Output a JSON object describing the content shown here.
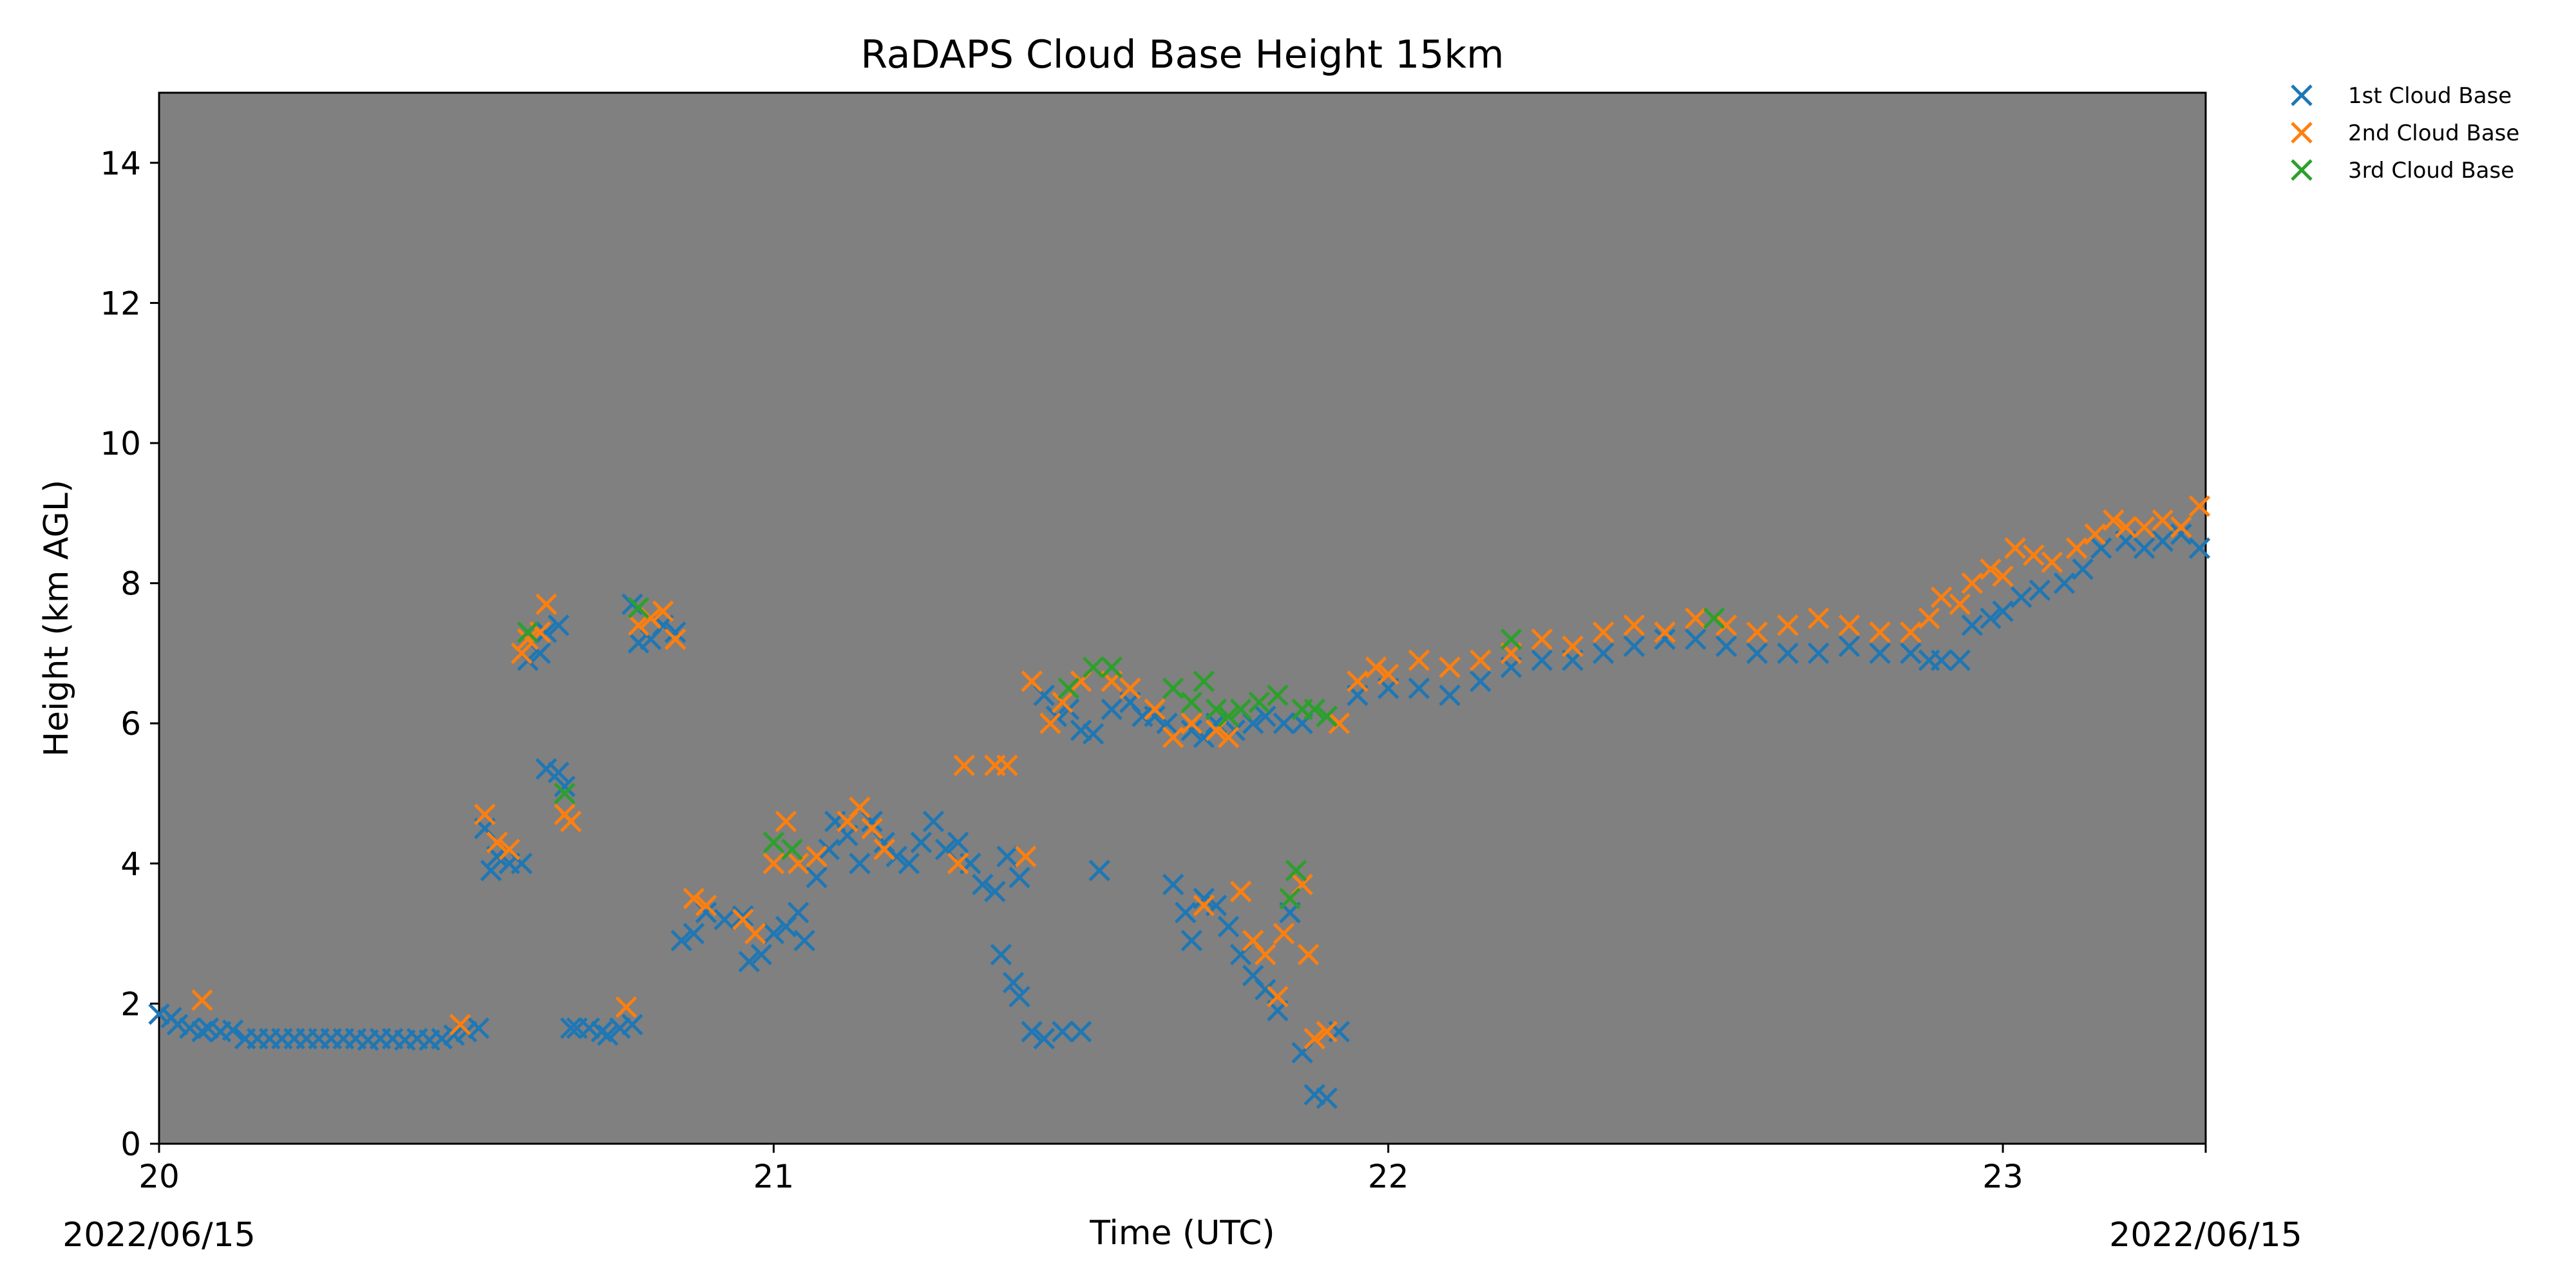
{
  "chart_data": {
    "type": "scatter",
    "title": "RaDAPS Cloud Base Height 15km",
    "xlabel": "Time (UTC)",
    "ylabel": "Height (km AGL)",
    "xlim": [
      20.0,
      23.33
    ],
    "ylim": [
      0,
      15
    ],
    "x_ticks": [
      {
        "value": 20,
        "label": "20"
      },
      {
        "value": 21,
        "label": "21"
      },
      {
        "value": 22,
        "label": "22"
      },
      {
        "value": 23,
        "label": "23"
      }
    ],
    "y_ticks": [
      {
        "value": 0,
        "label": "0"
      },
      {
        "value": 2,
        "label": "2"
      },
      {
        "value": 4,
        "label": "4"
      },
      {
        "value": 6,
        "label": "6"
      },
      {
        "value": 8,
        "label": "8"
      },
      {
        "value": 10,
        "label": "10"
      },
      {
        "value": 12,
        "label": "12"
      },
      {
        "value": 14,
        "label": "14"
      }
    ],
    "date_labels": {
      "start": "2022/06/15",
      "end": "2022/06/15"
    },
    "plot_background": "#808080",
    "marker": "x",
    "grid": false,
    "legend_position": "outside-top-right",
    "series": [
      {
        "name": "1st Cloud Base",
        "color": "#1f77b4",
        "points": [
          [
            20.0,
            1.85
          ],
          [
            20.02,
            1.8
          ],
          [
            20.03,
            1.7
          ],
          [
            20.05,
            1.65
          ],
          [
            20.07,
            1.6
          ],
          [
            20.08,
            1.65
          ],
          [
            20.1,
            1.6
          ],
          [
            20.12,
            1.62
          ],
          [
            20.14,
            1.5
          ],
          [
            20.16,
            1.5
          ],
          [
            20.18,
            1.5
          ],
          [
            20.2,
            1.5
          ],
          [
            20.22,
            1.5
          ],
          [
            20.24,
            1.5
          ],
          [
            20.26,
            1.5
          ],
          [
            20.28,
            1.5
          ],
          [
            20.3,
            1.5
          ],
          [
            20.32,
            1.5
          ],
          [
            20.34,
            1.48
          ],
          [
            20.36,
            1.5
          ],
          [
            20.38,
            1.5
          ],
          [
            20.4,
            1.48
          ],
          [
            20.42,
            1.5
          ],
          [
            20.44,
            1.48
          ],
          [
            20.46,
            1.5
          ],
          [
            20.48,
            1.55
          ],
          [
            20.5,
            1.6
          ],
          [
            20.52,
            1.65
          ],
          [
            20.53,
            4.5
          ],
          [
            20.54,
            3.9
          ],
          [
            20.55,
            4.1
          ],
          [
            20.57,
            4.0
          ],
          [
            20.59,
            4.0
          ],
          [
            20.6,
            6.9
          ],
          [
            20.62,
            7.0
          ],
          [
            20.63,
            7.3
          ],
          [
            20.65,
            7.4
          ],
          [
            20.63,
            5.35
          ],
          [
            20.65,
            5.3
          ],
          [
            20.66,
            5.1
          ],
          [
            20.67,
            1.65
          ],
          [
            20.68,
            1.65
          ],
          [
            20.7,
            1.65
          ],
          [
            20.72,
            1.6
          ],
          [
            20.73,
            1.55
          ],
          [
            20.75,
            1.65
          ],
          [
            20.77,
            1.7
          ],
          [
            20.77,
            7.7
          ],
          [
            20.78,
            7.15
          ],
          [
            20.8,
            7.2
          ],
          [
            20.82,
            7.4
          ],
          [
            20.84,
            7.3
          ],
          [
            20.85,
            2.9
          ],
          [
            20.87,
            3.0
          ],
          [
            20.89,
            3.3
          ],
          [
            20.92,
            3.2
          ],
          [
            20.95,
            3.25
          ],
          [
            20.96,
            2.6
          ],
          [
            20.98,
            2.7
          ],
          [
            21.0,
            3.0
          ],
          [
            21.02,
            3.1
          ],
          [
            21.04,
            3.3
          ],
          [
            21.05,
            2.9
          ],
          [
            21.07,
            3.8
          ],
          [
            21.09,
            4.2
          ],
          [
            21.1,
            4.6
          ],
          [
            21.12,
            4.4
          ],
          [
            21.14,
            4.0
          ],
          [
            21.16,
            4.6
          ],
          [
            21.18,
            4.3
          ],
          [
            21.2,
            4.1
          ],
          [
            21.22,
            4.0
          ],
          [
            21.24,
            4.3
          ],
          [
            21.26,
            4.6
          ],
          [
            21.28,
            4.2
          ],
          [
            21.3,
            4.3
          ],
          [
            21.32,
            4.0
          ],
          [
            21.34,
            3.7
          ],
          [
            21.36,
            3.6
          ],
          [
            21.38,
            4.1
          ],
          [
            21.4,
            3.8
          ],
          [
            21.37,
            2.7
          ],
          [
            21.39,
            2.3
          ],
          [
            21.4,
            2.1
          ],
          [
            21.42,
            1.6
          ],
          [
            21.44,
            1.5
          ],
          [
            21.47,
            1.6
          ],
          [
            21.5,
            1.6
          ],
          [
            21.53,
            3.9
          ],
          [
            21.44,
            6.4
          ],
          [
            21.46,
            6.1
          ],
          [
            21.48,
            6.2
          ],
          [
            21.5,
            5.9
          ],
          [
            21.52,
            5.85
          ],
          [
            21.55,
            6.2
          ],
          [
            21.58,
            6.3
          ],
          [
            21.6,
            6.1
          ],
          [
            21.62,
            6.1
          ],
          [
            21.64,
            6.0
          ],
          [
            21.65,
            3.7
          ],
          [
            21.67,
            3.3
          ],
          [
            21.68,
            2.9
          ],
          [
            21.7,
            3.5
          ],
          [
            21.72,
            3.4
          ],
          [
            21.74,
            3.1
          ],
          [
            21.76,
            2.7
          ],
          [
            21.78,
            2.4
          ],
          [
            21.8,
            2.2
          ],
          [
            21.82,
            1.9
          ],
          [
            21.84,
            3.3
          ],
          [
            21.86,
            1.3
          ],
          [
            21.88,
            0.7
          ],
          [
            21.9,
            0.65
          ],
          [
            21.92,
            1.6
          ],
          [
            21.68,
            5.9
          ],
          [
            21.7,
            5.8
          ],
          [
            21.72,
            6.0
          ],
          [
            21.75,
            5.9
          ],
          [
            21.78,
            6.0
          ],
          [
            21.8,
            6.1
          ],
          [
            21.83,
            6.0
          ],
          [
            21.86,
            6.0
          ],
          [
            21.9,
            6.1
          ],
          [
            21.95,
            6.4
          ],
          [
            22.0,
            6.5
          ],
          [
            22.05,
            6.5
          ],
          [
            22.1,
            6.4
          ],
          [
            22.15,
            6.6
          ],
          [
            22.2,
            6.8
          ],
          [
            22.25,
            6.9
          ],
          [
            22.3,
            6.9
          ],
          [
            22.35,
            7.0
          ],
          [
            22.4,
            7.1
          ],
          [
            22.45,
            7.2
          ],
          [
            22.5,
            7.2
          ],
          [
            22.55,
            7.1
          ],
          [
            22.6,
            7.0
          ],
          [
            22.65,
            7.0
          ],
          [
            22.7,
            7.0
          ],
          [
            22.75,
            7.1
          ],
          [
            22.8,
            7.0
          ],
          [
            22.85,
            7.0
          ],
          [
            22.88,
            6.9
          ],
          [
            22.9,
            6.9
          ],
          [
            22.93,
            6.9
          ],
          [
            22.95,
            7.4
          ],
          [
            22.98,
            7.5
          ],
          [
            23.0,
            7.6
          ],
          [
            23.03,
            7.8
          ],
          [
            23.06,
            7.9
          ],
          [
            23.1,
            8.0
          ],
          [
            23.13,
            8.2
          ],
          [
            23.16,
            8.5
          ],
          [
            23.2,
            8.6
          ],
          [
            23.23,
            8.5
          ],
          [
            23.26,
            8.6
          ],
          [
            23.29,
            8.7
          ],
          [
            23.32,
            8.5
          ]
        ]
      },
      {
        "name": "2nd Cloud Base",
        "color": "#ff7f0e",
        "points": [
          [
            20.07,
            2.05
          ],
          [
            20.49,
            1.7
          ],
          [
            20.53,
            4.7
          ],
          [
            20.55,
            4.3
          ],
          [
            20.57,
            4.2
          ],
          [
            20.59,
            7.0
          ],
          [
            20.6,
            7.2
          ],
          [
            20.62,
            7.3
          ],
          [
            20.63,
            7.7
          ],
          [
            20.66,
            4.7
          ],
          [
            20.67,
            4.6
          ],
          [
            20.76,
            1.95
          ],
          [
            20.78,
            7.4
          ],
          [
            20.8,
            7.5
          ],
          [
            20.82,
            7.6
          ],
          [
            20.84,
            7.2
          ],
          [
            20.87,
            3.5
          ],
          [
            20.89,
            3.4
          ],
          [
            20.95,
            3.2
          ],
          [
            20.97,
            3.0
          ],
          [
            21.0,
            4.0
          ],
          [
            21.02,
            4.6
          ],
          [
            21.04,
            4.0
          ],
          [
            21.07,
            4.1
          ],
          [
            21.12,
            4.6
          ],
          [
            21.14,
            4.8
          ],
          [
            21.16,
            4.5
          ],
          [
            21.18,
            4.2
          ],
          [
            21.3,
            4.0
          ],
          [
            21.31,
            5.4
          ],
          [
            21.36,
            5.4
          ],
          [
            21.38,
            5.4
          ],
          [
            21.41,
            4.1
          ],
          [
            21.42,
            6.6
          ],
          [
            21.45,
            6.0
          ],
          [
            21.47,
            6.3
          ],
          [
            21.5,
            6.6
          ],
          [
            21.52,
            6.8
          ],
          [
            21.55,
            6.6
          ],
          [
            21.58,
            6.5
          ],
          [
            21.62,
            6.2
          ],
          [
            21.65,
            5.8
          ],
          [
            21.68,
            6.0
          ],
          [
            21.7,
            3.4
          ],
          [
            21.72,
            5.9
          ],
          [
            21.74,
            5.8
          ],
          [
            21.76,
            3.6
          ],
          [
            21.78,
            2.9
          ],
          [
            21.8,
            2.7
          ],
          [
            21.82,
            2.1
          ],
          [
            21.83,
            3.0
          ],
          [
            21.84,
            3.5
          ],
          [
            21.86,
            3.7
          ],
          [
            21.87,
            2.7
          ],
          [
            21.88,
            1.5
          ],
          [
            21.9,
            1.6
          ],
          [
            21.92,
            6.0
          ],
          [
            21.95,
            6.6
          ],
          [
            21.98,
            6.8
          ],
          [
            22.0,
            6.7
          ],
          [
            22.05,
            6.9
          ],
          [
            22.1,
            6.8
          ],
          [
            22.15,
            6.9
          ],
          [
            22.2,
            7.0
          ],
          [
            22.25,
            7.2
          ],
          [
            22.3,
            7.1
          ],
          [
            22.35,
            7.3
          ],
          [
            22.4,
            7.4
          ],
          [
            22.45,
            7.3
          ],
          [
            22.5,
            7.5
          ],
          [
            22.55,
            7.4
          ],
          [
            22.6,
            7.3
          ],
          [
            22.65,
            7.4
          ],
          [
            22.7,
            7.5
          ],
          [
            22.75,
            7.4
          ],
          [
            22.8,
            7.3
          ],
          [
            22.85,
            7.3
          ],
          [
            22.88,
            7.5
          ],
          [
            22.9,
            7.8
          ],
          [
            22.93,
            7.7
          ],
          [
            22.95,
            8.0
          ],
          [
            22.98,
            8.2
          ],
          [
            23.0,
            8.1
          ],
          [
            23.02,
            8.5
          ],
          [
            23.05,
            8.4
          ],
          [
            23.08,
            8.3
          ],
          [
            23.12,
            8.5
          ],
          [
            23.15,
            8.7
          ],
          [
            23.18,
            8.9
          ],
          [
            23.2,
            8.8
          ],
          [
            23.23,
            8.8
          ],
          [
            23.26,
            8.9
          ],
          [
            23.29,
            8.8
          ],
          [
            23.32,
            9.1
          ]
        ]
      },
      {
        "name": "3rd Cloud Base",
        "color": "#2ca02c",
        "points": [
          [
            20.6,
            7.3
          ],
          [
            20.66,
            5.0
          ],
          [
            20.78,
            7.65
          ],
          [
            21.0,
            4.3
          ],
          [
            21.03,
            4.2
          ],
          [
            21.48,
            6.5
          ],
          [
            21.52,
            6.8
          ],
          [
            21.55,
            6.8
          ],
          [
            21.65,
            6.5
          ],
          [
            21.68,
            6.3
          ],
          [
            21.7,
            6.6
          ],
          [
            21.72,
            6.2
          ],
          [
            21.74,
            6.1
          ],
          [
            21.76,
            6.2
          ],
          [
            21.79,
            6.3
          ],
          [
            21.82,
            6.4
          ],
          [
            21.84,
            3.5
          ],
          [
            21.85,
            3.9
          ],
          [
            21.86,
            6.2
          ],
          [
            21.88,
            6.2
          ],
          [
            21.9,
            6.1
          ],
          [
            22.2,
            7.2
          ],
          [
            22.53,
            7.5
          ]
        ]
      }
    ]
  }
}
